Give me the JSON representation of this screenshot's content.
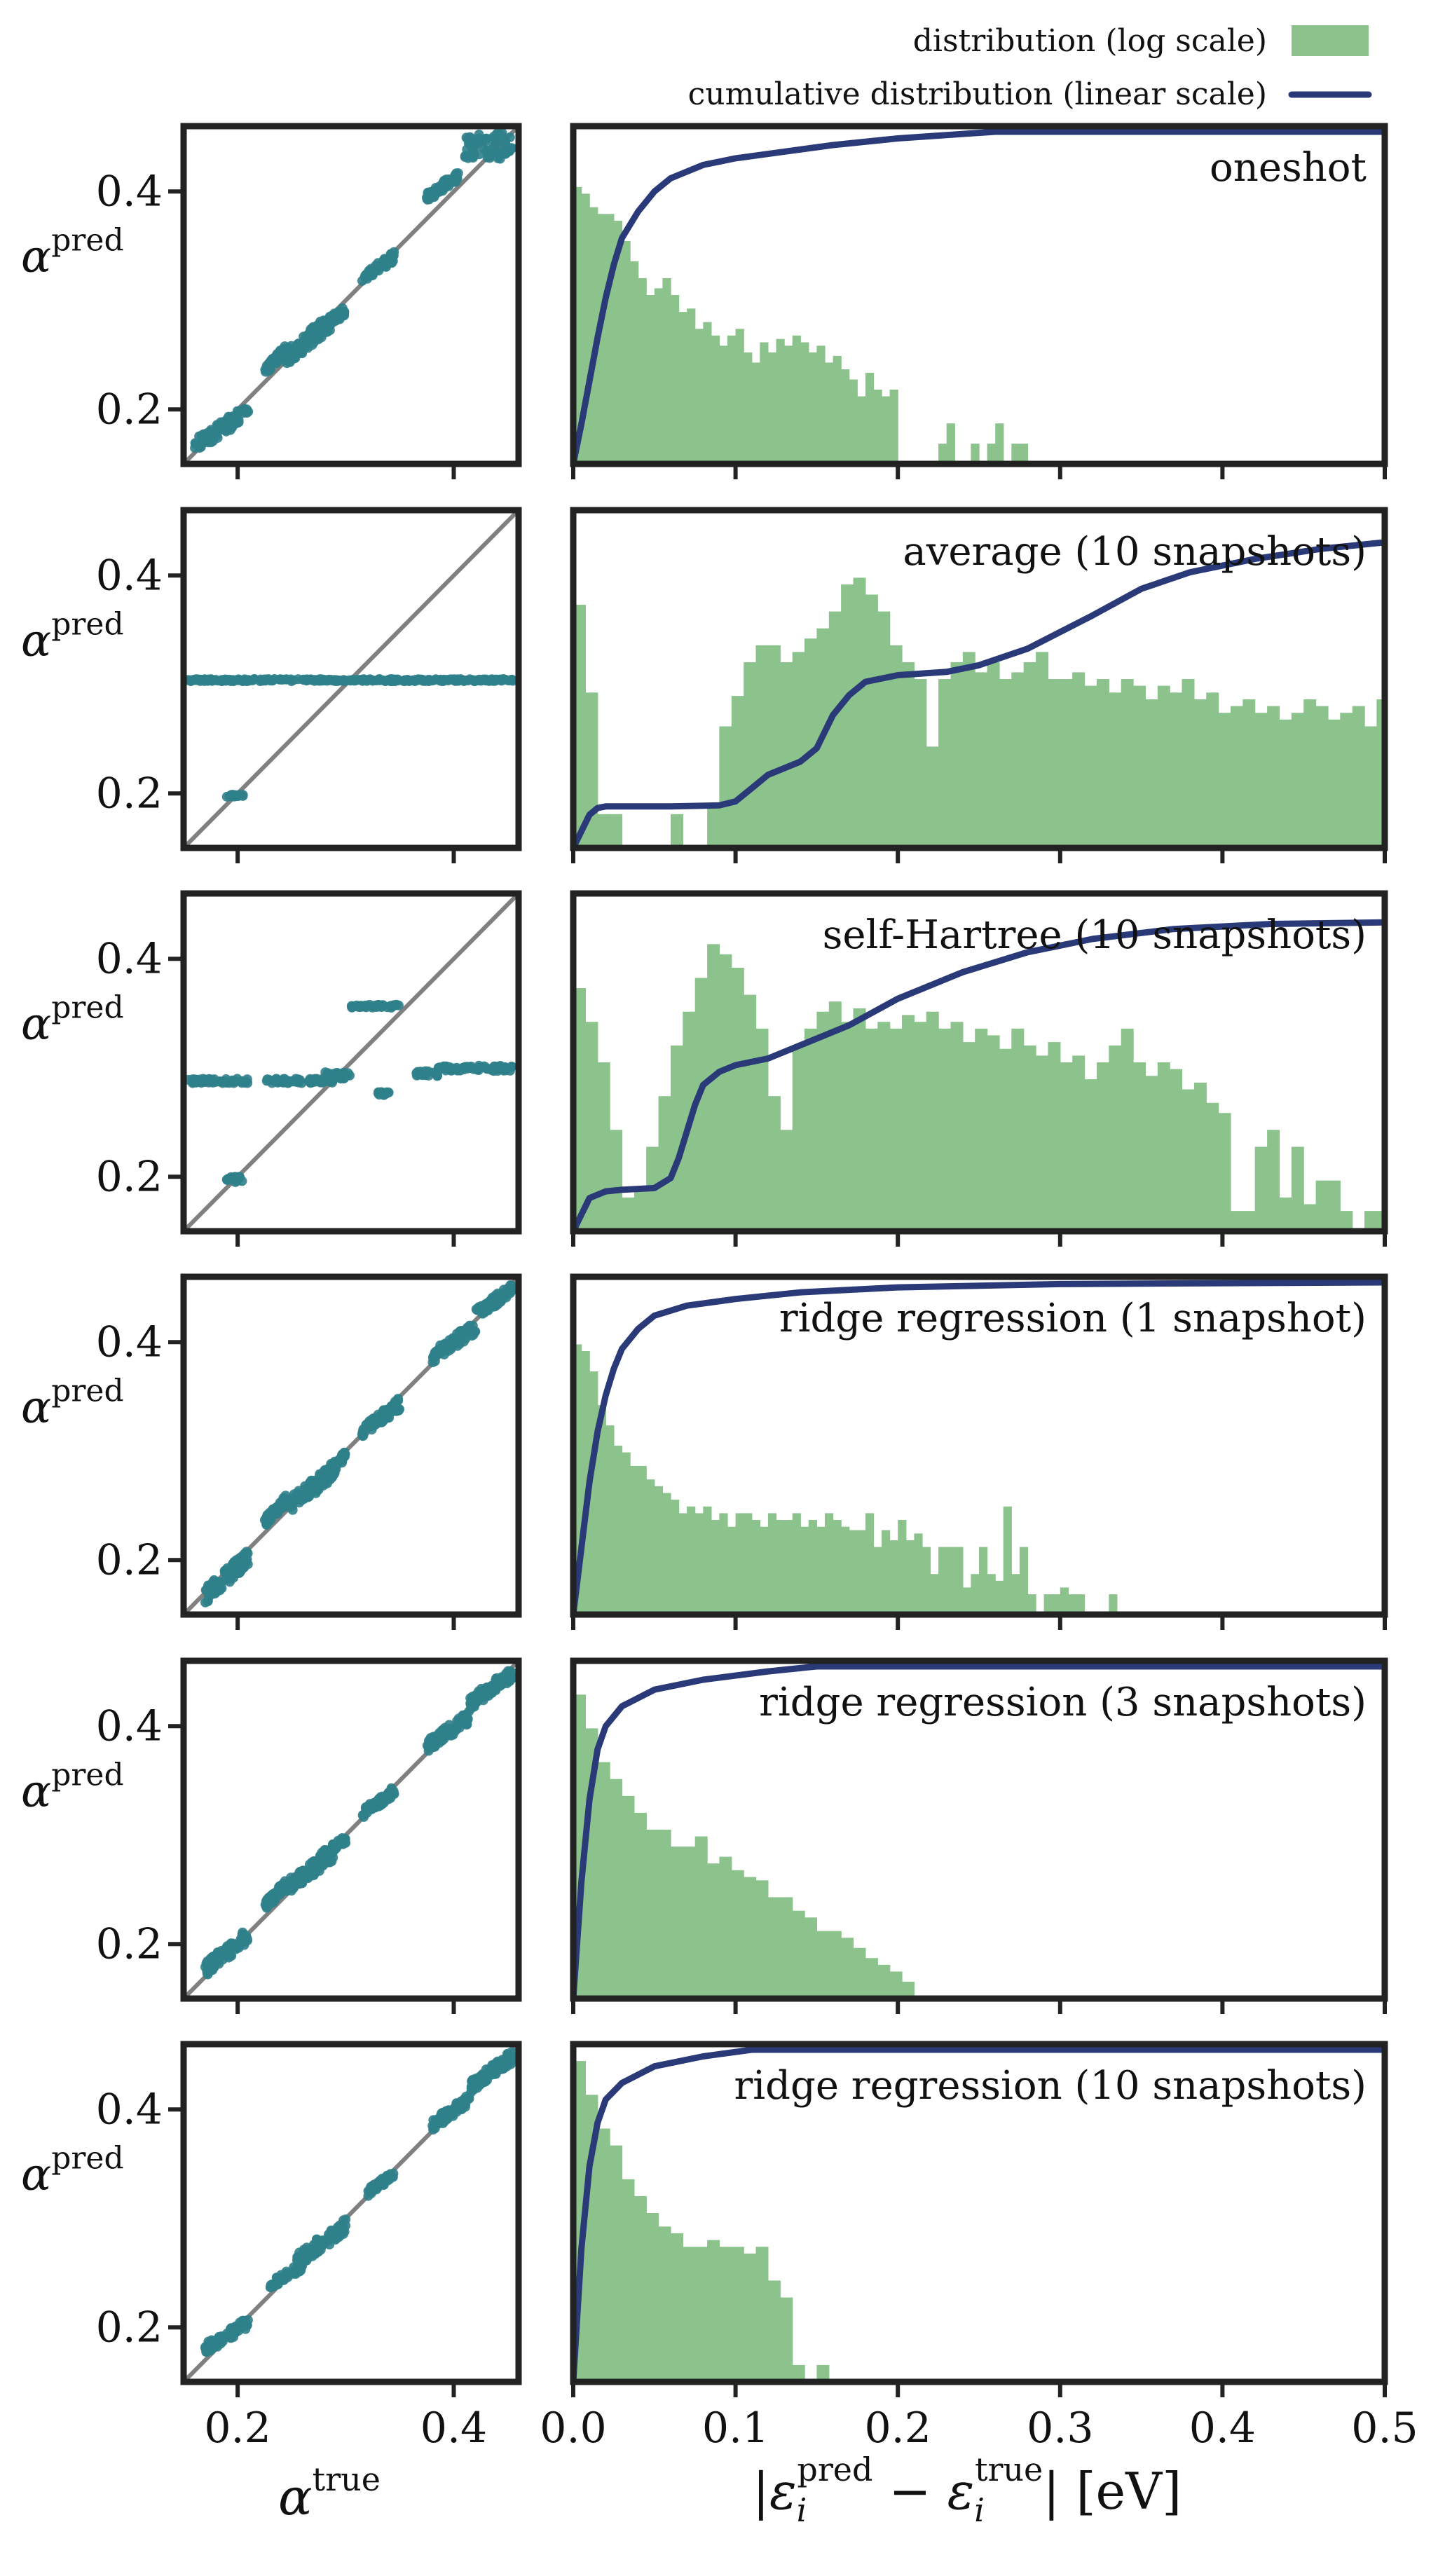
{
  "legend": {
    "hist_label": "distribution (log scale)",
    "cdf_label": "cumulative distribution (linear scale)"
  },
  "colors": {
    "scatter": "#2f7f8a",
    "diagonal": "#808080",
    "hist": "#8cc38d",
    "cdf": "#2a3a78",
    "frame": "#222222"
  },
  "axes": {
    "scatter_y_label": "pred",
    "scatter_x_label": "true",
    "hist_x_label_suffix": "[eV]"
  },
  "chart_data": [
    {
      "type": "scatter",
      "row": 0,
      "xlim": [
        0.15,
        0.46
      ],
      "ylim": [
        0.15,
        0.46
      ],
      "xticks": [
        "0.2",
        "0.4"
      ],
      "yticks": [
        "0.2",
        "0.4"
      ],
      "clusters": [
        {
          "x": [
            0.16,
            0.21
          ],
          "y": [
            0.16,
            0.205
          ]
        },
        {
          "x": [
            0.225,
            0.245
          ],
          "y": [
            0.23,
            0.26
          ]
        },
        {
          "x": [
            0.245,
            0.29
          ],
          "y": [
            0.24,
            0.29
          ]
        },
        {
          "x": [
            0.265,
            0.3
          ],
          "y": [
            0.265,
            0.295
          ]
        },
        {
          "x": [
            0.315,
            0.345
          ],
          "y": [
            0.315,
            0.345
          ]
        },
        {
          "x": [
            0.375,
            0.405
          ],
          "y": [
            0.39,
            0.42
          ]
        },
        {
          "x": [
            0.41,
            0.455
          ],
          "y": [
            0.43,
            0.455
          ]
        }
      ]
    },
    {
      "type": "bar",
      "row": 0,
      "label": "oneshot",
      "xlim": [
        0,
        0.5
      ],
      "xticks": [
        "0.0",
        "0.1",
        "0.2",
        "0.3",
        "0.4",
        "0.5"
      ],
      "bin_width": 0.005,
      "hist": [
        0.82,
        0.8,
        0.76,
        0.74,
        0.74,
        0.72,
        0.66,
        0.6,
        0.55,
        0.5,
        0.52,
        0.55,
        0.5,
        0.45,
        0.46,
        0.4,
        0.42,
        0.38,
        0.35,
        0.38,
        0.4,
        0.33,
        0.3,
        0.36,
        0.33,
        0.37,
        0.35,
        0.38,
        0.36,
        0.33,
        0.35,
        0.3,
        0.32,
        0.28,
        0.25,
        0.2,
        0.27,
        0.22,
        0.2,
        0.22,
        0.0,
        0.0,
        0.0,
        0.0,
        0.0,
        0.06,
        0.12,
        0.0,
        0.0,
        0.06,
        0.0,
        0.06,
        0.12,
        0.0,
        0.06,
        0.06
      ],
      "cdf": [
        [
          0,
          0.0
        ],
        [
          0.005,
          0.12
        ],
        [
          0.01,
          0.25
        ],
        [
          0.015,
          0.38
        ],
        [
          0.02,
          0.5
        ],
        [
          0.025,
          0.6
        ],
        [
          0.03,
          0.68
        ],
        [
          0.04,
          0.76
        ],
        [
          0.05,
          0.82
        ],
        [
          0.06,
          0.86
        ],
        [
          0.08,
          0.9
        ],
        [
          0.1,
          0.92
        ],
        [
          0.13,
          0.94
        ],
        [
          0.16,
          0.96
        ],
        [
          0.2,
          0.98
        ],
        [
          0.26,
          1.0
        ],
        [
          0.5,
          1.0
        ]
      ]
    },
    {
      "type": "scatter",
      "row": 1,
      "xlim": [
        0.15,
        0.46
      ],
      "ylim": [
        0.15,
        0.46
      ],
      "xticks": [
        "0.2",
        "0.4"
      ],
      "yticks": [
        "0.2",
        "0.4"
      ],
      "clusters": [
        {
          "x": [
            0.152,
            0.455
          ],
          "y": [
            0.303,
            0.305
          ]
        },
        {
          "x": [
            0.19,
            0.205
          ],
          "y": [
            0.197,
            0.199
          ]
        }
      ]
    },
    {
      "type": "bar",
      "row": 1,
      "label": "average (10 snapshots)",
      "xlim": [
        0,
        0.5
      ],
      "xticks": [
        "0.0",
        "0.1",
        "0.2",
        "0.3",
        "0.4",
        "0.5"
      ],
      "bin_width": 0.0075,
      "hist": [
        0.72,
        0.46,
        0.1,
        0.1,
        0.0,
        0.0,
        0.0,
        0.0,
        0.1,
        0.0,
        0.0,
        0.12,
        0.36,
        0.45,
        0.55,
        0.6,
        0.6,
        0.55,
        0.58,
        0.62,
        0.65,
        0.7,
        0.78,
        0.8,
        0.75,
        0.7,
        0.6,
        0.55,
        0.5,
        0.3,
        0.5,
        0.55,
        0.58,
        0.52,
        0.55,
        0.5,
        0.52,
        0.55,
        0.58,
        0.5,
        0.5,
        0.52,
        0.48,
        0.5,
        0.46,
        0.5,
        0.48,
        0.44,
        0.48,
        0.46,
        0.5,
        0.44,
        0.46,
        0.4,
        0.42,
        0.44,
        0.4,
        0.42,
        0.38,
        0.4,
        0.44,
        0.42,
        0.38,
        0.4,
        0.42,
        0.36,
        0.44,
        0.4
      ],
      "cdf": [
        [
          0,
          0.0
        ],
        [
          0.005,
          0.05
        ],
        [
          0.01,
          0.1
        ],
        [
          0.015,
          0.12
        ],
        [
          0.02,
          0.125
        ],
        [
          0.06,
          0.125
        ],
        [
          0.09,
          0.128
        ],
        [
          0.1,
          0.14
        ],
        [
          0.11,
          0.18
        ],
        [
          0.12,
          0.22
        ],
        [
          0.14,
          0.26
        ],
        [
          0.15,
          0.3
        ],
        [
          0.16,
          0.4
        ],
        [
          0.17,
          0.46
        ],
        [
          0.18,
          0.5
        ],
        [
          0.2,
          0.52
        ],
        [
          0.23,
          0.53
        ],
        [
          0.25,
          0.55
        ],
        [
          0.28,
          0.6
        ],
        [
          0.3,
          0.65
        ],
        [
          0.32,
          0.7
        ],
        [
          0.35,
          0.78
        ],
        [
          0.38,
          0.83
        ],
        [
          0.42,
          0.87
        ],
        [
          0.46,
          0.9
        ],
        [
          0.5,
          0.92
        ]
      ]
    },
    {
      "type": "scatter",
      "row": 2,
      "xlim": [
        0.15,
        0.46
      ],
      "ylim": [
        0.15,
        0.46
      ],
      "xticks": [
        "0.2",
        "0.4"
      ],
      "yticks": [
        "0.2",
        "0.4"
      ],
      "clusters": [
        {
          "x": [
            0.152,
            0.21
          ],
          "y": [
            0.286,
            0.29
          ]
        },
        {
          "x": [
            0.225,
            0.29
          ],
          "y": [
            0.286,
            0.29
          ]
        },
        {
          "x": [
            0.28,
            0.305
          ],
          "y": [
            0.29,
            0.296
          ]
        },
        {
          "x": [
            0.305,
            0.35
          ],
          "y": [
            0.355,
            0.358
          ]
        },
        {
          "x": [
            0.33,
            0.34
          ],
          "y": [
            0.275,
            0.278
          ]
        },
        {
          "x": [
            0.365,
            0.385
          ],
          "y": [
            0.292,
            0.297
          ]
        },
        {
          "x": [
            0.385,
            0.455
          ],
          "y": [
            0.297,
            0.302
          ]
        },
        {
          "x": [
            0.19,
            0.205
          ],
          "y": [
            0.195,
            0.2
          ]
        }
      ]
    },
    {
      "type": "bar",
      "row": 2,
      "label": "self-Hartree (10 snapshots)",
      "xlim": [
        0,
        0.5
      ],
      "xticks": [
        "0.0",
        "0.1",
        "0.2",
        "0.3",
        "0.4",
        "0.5"
      ],
      "bin_width": 0.0075,
      "hist": [
        0.72,
        0.62,
        0.5,
        0.3,
        0.1,
        0.12,
        0.25,
        0.4,
        0.55,
        0.65,
        0.75,
        0.85,
        0.82,
        0.78,
        0.7,
        0.6,
        0.4,
        0.3,
        0.55,
        0.6,
        0.65,
        0.68,
        0.62,
        0.66,
        0.6,
        0.62,
        0.6,
        0.64,
        0.62,
        0.65,
        0.6,
        0.62,
        0.56,
        0.6,
        0.58,
        0.54,
        0.6,
        0.55,
        0.52,
        0.56,
        0.5,
        0.52,
        0.45,
        0.5,
        0.55,
        0.6,
        0.5,
        0.46,
        0.5,
        0.48,
        0.42,
        0.44,
        0.38,
        0.35,
        0.06,
        0.06,
        0.25,
        0.3,
        0.1,
        0.25,
        0.08,
        0.15,
        0.15,
        0.06,
        0.0,
        0.06,
        0.06,
        0.06
      ],
      "cdf": [
        [
          0,
          0.0
        ],
        [
          0.005,
          0.05
        ],
        [
          0.01,
          0.1
        ],
        [
          0.02,
          0.12
        ],
        [
          0.03,
          0.125
        ],
        [
          0.05,
          0.13
        ],
        [
          0.06,
          0.16
        ],
        [
          0.065,
          0.22
        ],
        [
          0.07,
          0.3
        ],
        [
          0.075,
          0.38
        ],
        [
          0.08,
          0.44
        ],
        [
          0.09,
          0.48
        ],
        [
          0.1,
          0.5
        ],
        [
          0.12,
          0.52
        ],
        [
          0.14,
          0.56
        ],
        [
          0.17,
          0.62
        ],
        [
          0.2,
          0.7
        ],
        [
          0.24,
          0.78
        ],
        [
          0.28,
          0.84
        ],
        [
          0.32,
          0.88
        ],
        [
          0.37,
          0.91
        ],
        [
          0.43,
          0.925
        ],
        [
          0.5,
          0.93
        ]
      ]
    },
    {
      "type": "scatter",
      "row": 3,
      "xlim": [
        0.15,
        0.46
      ],
      "ylim": [
        0.15,
        0.46
      ],
      "xticks": [
        "0.2",
        "0.4"
      ],
      "yticks": [
        "0.2",
        "0.4"
      ],
      "clusters": [
        {
          "x": [
            0.17,
            0.21
          ],
          "y": [
            0.16,
            0.21
          ]
        },
        {
          "x": [
            0.225,
            0.245
          ],
          "y": [
            0.23,
            0.26
          ]
        },
        {
          "x": [
            0.245,
            0.29
          ],
          "y": [
            0.24,
            0.29
          ]
        },
        {
          "x": [
            0.275,
            0.3
          ],
          "y": [
            0.27,
            0.3
          ]
        },
        {
          "x": [
            0.315,
            0.35
          ],
          "y": [
            0.31,
            0.35
          ]
        },
        {
          "x": [
            0.38,
            0.42
          ],
          "y": [
            0.38,
            0.42
          ]
        },
        {
          "x": [
            0.42,
            0.455
          ],
          "y": [
            0.42,
            0.455
          ]
        }
      ]
    },
    {
      "type": "bar",
      "row": 3,
      "label": "ridge regression (1 snapshot)",
      "xlim": [
        0,
        0.5
      ],
      "xticks": [
        "0.0",
        "0.1",
        "0.2",
        "0.3",
        "0.4",
        "0.5"
      ],
      "bin_width": 0.005,
      "hist": [
        0.8,
        0.78,
        0.72,
        0.62,
        0.56,
        0.5,
        0.48,
        0.44,
        0.44,
        0.4,
        0.38,
        0.36,
        0.34,
        0.3,
        0.32,
        0.3,
        0.32,
        0.28,
        0.3,
        0.26,
        0.3,
        0.3,
        0.28,
        0.26,
        0.3,
        0.28,
        0.28,
        0.3,
        0.26,
        0.28,
        0.26,
        0.3,
        0.28,
        0.26,
        0.25,
        0.25,
        0.3,
        0.2,
        0.25,
        0.22,
        0.28,
        0.22,
        0.24,
        0.2,
        0.12,
        0.2,
        0.2,
        0.2,
        0.08,
        0.12,
        0.2,
        0.12,
        0.1,
        0.32,
        0.12,
        0.2,
        0.06,
        0.0,
        0.06,
        0.06,
        0.08,
        0.06,
        0.06,
        0.0,
        0.0,
        0.0,
        0.06,
        0.0,
        0.0,
        0.0
      ],
      "cdf": [
        [
          0,
          0.0
        ],
        [
          0.005,
          0.2
        ],
        [
          0.01,
          0.4
        ],
        [
          0.015,
          0.55
        ],
        [
          0.02,
          0.66
        ],
        [
          0.025,
          0.74
        ],
        [
          0.03,
          0.8
        ],
        [
          0.04,
          0.86
        ],
        [
          0.05,
          0.9
        ],
        [
          0.07,
          0.93
        ],
        [
          0.1,
          0.95
        ],
        [
          0.14,
          0.97
        ],
        [
          0.2,
          0.985
        ],
        [
          0.3,
          0.995
        ],
        [
          0.5,
          1.0
        ]
      ]
    },
    {
      "type": "scatter",
      "row": 4,
      "xlim": [
        0.15,
        0.46
      ],
      "ylim": [
        0.15,
        0.46
      ],
      "xticks": [
        "0.2",
        "0.4"
      ],
      "yticks": [
        "0.2",
        "0.4"
      ],
      "clusters": [
        {
          "x": [
            0.17,
            0.21
          ],
          "y": [
            0.17,
            0.215
          ]
        },
        {
          "x": [
            0.225,
            0.245
          ],
          "y": [
            0.23,
            0.26
          ]
        },
        {
          "x": [
            0.245,
            0.29
          ],
          "y": [
            0.245,
            0.29
          ]
        },
        {
          "x": [
            0.275,
            0.3
          ],
          "y": [
            0.275,
            0.3
          ]
        },
        {
          "x": [
            0.315,
            0.345
          ],
          "y": [
            0.315,
            0.345
          ]
        },
        {
          "x": [
            0.375,
            0.415
          ],
          "y": [
            0.375,
            0.415
          ]
        },
        {
          "x": [
            0.415,
            0.455
          ],
          "y": [
            0.415,
            0.455
          ]
        }
      ]
    },
    {
      "type": "bar",
      "row": 4,
      "label": "ridge regression (3 snapshots)",
      "xlim": [
        0,
        0.5
      ],
      "xticks": [
        "0.0",
        "0.1",
        "0.2",
        "0.3",
        "0.4",
        "0.5"
      ],
      "bin_width": 0.0075,
      "hist": [
        0.9,
        0.8,
        0.7,
        0.65,
        0.6,
        0.55,
        0.5,
        0.5,
        0.45,
        0.45,
        0.48,
        0.4,
        0.42,
        0.38,
        0.36,
        0.35,
        0.3,
        0.3,
        0.26,
        0.24,
        0.2,
        0.2,
        0.18,
        0.15,
        0.12,
        0.1,
        0.08,
        0.05
      ],
      "cdf": [
        [
          0,
          0.0
        ],
        [
          0.005,
          0.35
        ],
        [
          0.01,
          0.6
        ],
        [
          0.015,
          0.75
        ],
        [
          0.02,
          0.82
        ],
        [
          0.03,
          0.88
        ],
        [
          0.05,
          0.93
        ],
        [
          0.08,
          0.96
        ],
        [
          0.12,
          0.985
        ],
        [
          0.15,
          1.0
        ],
        [
          0.5,
          1.0
        ]
      ]
    },
    {
      "type": "scatter",
      "row": 5,
      "xlim": [
        0.15,
        0.46
      ],
      "ylim": [
        0.15,
        0.46
      ],
      "xticks": [
        "0.2",
        "0.4"
      ],
      "yticks": [
        "0.2",
        "0.4"
      ],
      "clusters": [
        {
          "x": [
            0.17,
            0.21
          ],
          "y": [
            0.175,
            0.21
          ]
        },
        {
          "x": [
            0.23,
            0.26
          ],
          "y": [
            0.235,
            0.26
          ]
        },
        {
          "x": [
            0.255,
            0.3
          ],
          "y": [
            0.255,
            0.3
          ]
        },
        {
          "x": [
            0.32,
            0.345
          ],
          "y": [
            0.32,
            0.345
          ]
        },
        {
          "x": [
            0.38,
            0.415
          ],
          "y": [
            0.38,
            0.415
          ]
        },
        {
          "x": [
            0.415,
            0.455
          ],
          "y": [
            0.415,
            0.455
          ]
        }
      ]
    },
    {
      "type": "bar",
      "row": 5,
      "label": "ridge regression (10 snapshots)",
      "xlim": [
        0,
        0.5
      ],
      "xticks": [
        "0.0",
        "0.1",
        "0.2",
        "0.3",
        "0.4",
        "0.5"
      ],
      "bin_width": 0.0075,
      "hist": [
        0.95,
        0.85,
        0.75,
        0.7,
        0.6,
        0.55,
        0.5,
        0.46,
        0.44,
        0.4,
        0.4,
        0.42,
        0.4,
        0.4,
        0.38,
        0.4,
        0.3,
        0.25,
        0.05,
        0.0,
        0.05,
        0.0
      ],
      "cdf": [
        [
          0,
          0.0
        ],
        [
          0.005,
          0.4
        ],
        [
          0.01,
          0.65
        ],
        [
          0.015,
          0.78
        ],
        [
          0.02,
          0.85
        ],
        [
          0.03,
          0.9
        ],
        [
          0.05,
          0.95
        ],
        [
          0.08,
          0.98
        ],
        [
          0.11,
          1.0
        ],
        [
          0.5,
          1.0
        ]
      ]
    }
  ]
}
